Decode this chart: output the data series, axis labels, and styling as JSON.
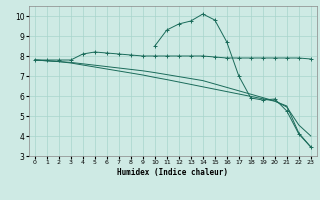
{
  "xlabel": "Humidex (Indice chaleur)",
  "background_color": "#ceeae4",
  "grid_color": "#a8d5cc",
  "line_color": "#1a6b5a",
  "xlim": [
    -0.5,
    23.5
  ],
  "ylim": [
    3,
    10.5
  ],
  "xticks": [
    0,
    1,
    2,
    3,
    4,
    5,
    6,
    7,
    8,
    9,
    10,
    11,
    12,
    13,
    14,
    15,
    16,
    17,
    18,
    19,
    20,
    21,
    22,
    23
  ],
  "yticks": [
    3,
    4,
    5,
    6,
    7,
    8,
    9,
    10
  ],
  "line1_x": [
    0,
    1,
    2,
    3,
    4,
    5,
    6,
    7,
    8,
    9,
    10,
    11,
    12,
    13,
    14,
    15,
    16,
    17,
    18,
    19,
    20,
    21,
    22,
    23
  ],
  "line1_y": [
    7.8,
    7.8,
    7.8,
    7.8,
    8.1,
    8.2,
    8.15,
    8.1,
    8.05,
    8.0,
    8.0,
    8.0,
    8.0,
    8.0,
    8.0,
    7.95,
    7.9,
    7.9,
    7.9,
    7.9,
    7.9,
    7.9,
    7.9,
    7.85
  ],
  "line2_x": [
    10,
    11,
    12,
    13,
    14,
    15,
    16,
    17,
    18,
    19,
    20,
    21,
    22,
    23
  ],
  "line2_y": [
    8.5,
    9.3,
    9.6,
    9.75,
    10.1,
    9.8,
    8.7,
    7.0,
    5.9,
    5.8,
    5.85,
    5.25,
    4.1,
    3.45
  ],
  "line3_x": [
    0,
    1,
    2,
    3,
    4,
    5,
    6,
    7,
    8,
    9,
    10,
    11,
    12,
    13,
    14,
    15,
    16,
    17,
    18,
    19,
    20,
    21,
    22,
    23
  ],
  "line3_y": [
    7.8,
    7.76,
    7.72,
    7.65,
    7.55,
    7.45,
    7.35,
    7.25,
    7.15,
    7.05,
    6.93,
    6.82,
    6.7,
    6.58,
    6.46,
    6.34,
    6.22,
    6.1,
    5.98,
    5.86,
    5.74,
    5.5,
    4.15,
    3.45
  ],
  "line4_x": [
    0,
    1,
    2,
    3,
    4,
    5,
    6,
    7,
    8,
    9,
    10,
    11,
    12,
    13,
    14,
    15,
    16,
    17,
    18,
    19,
    20,
    21,
    22,
    23
  ],
  "line4_y": [
    7.8,
    7.76,
    7.72,
    7.68,
    7.61,
    7.54,
    7.47,
    7.4,
    7.33,
    7.26,
    7.17,
    7.07,
    6.97,
    6.87,
    6.77,
    6.6,
    6.43,
    6.26,
    6.09,
    5.92,
    5.75,
    5.45,
    4.55,
    4.0
  ]
}
